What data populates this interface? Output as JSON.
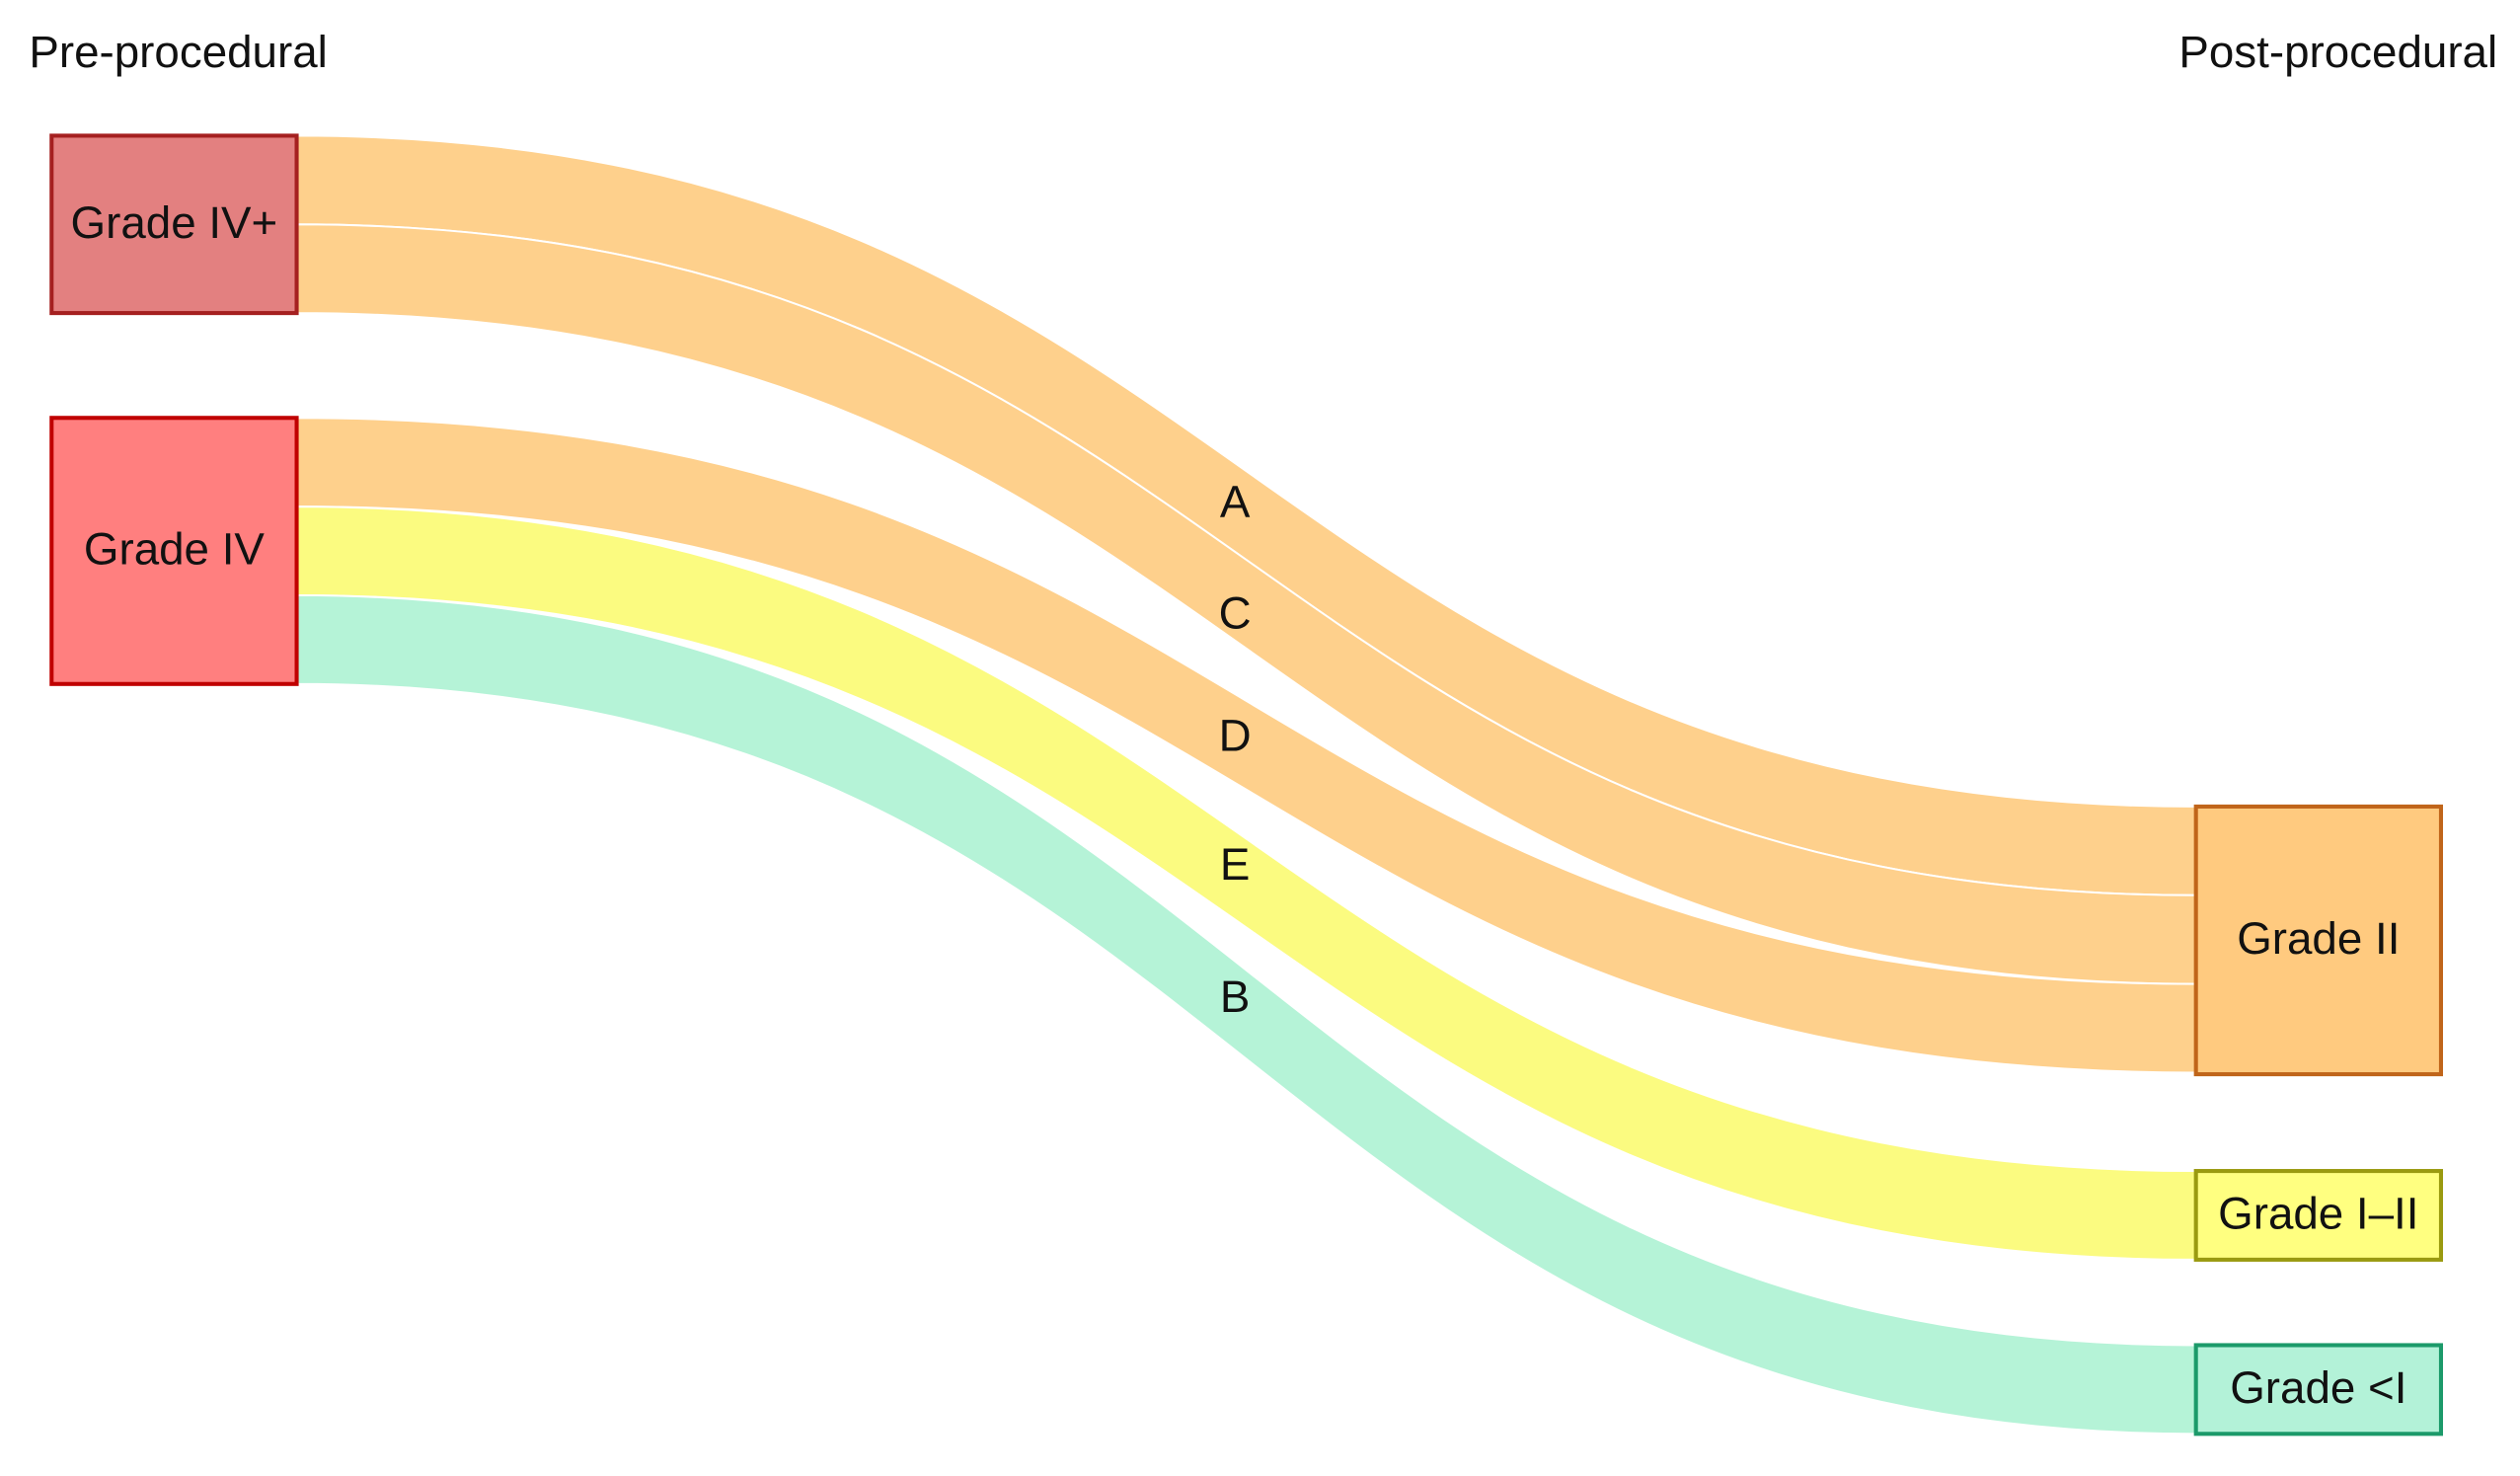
{
  "columns": {
    "left": "Pre-procedural",
    "right": "Post-procedural"
  },
  "nodes": [
    {
      "label": "Grade IV+"
    },
    {
      "label": "Grade IV"
    },
    {
      "label": "Grade II"
    },
    {
      "label": "Grade I–II"
    },
    {
      "label": "Grade <I"
    }
  ],
  "links": [
    {
      "label": "A"
    },
    {
      "label": "C"
    },
    {
      "label": "D"
    },
    {
      "label": "E"
    },
    {
      "label": "B"
    }
  ]
}
